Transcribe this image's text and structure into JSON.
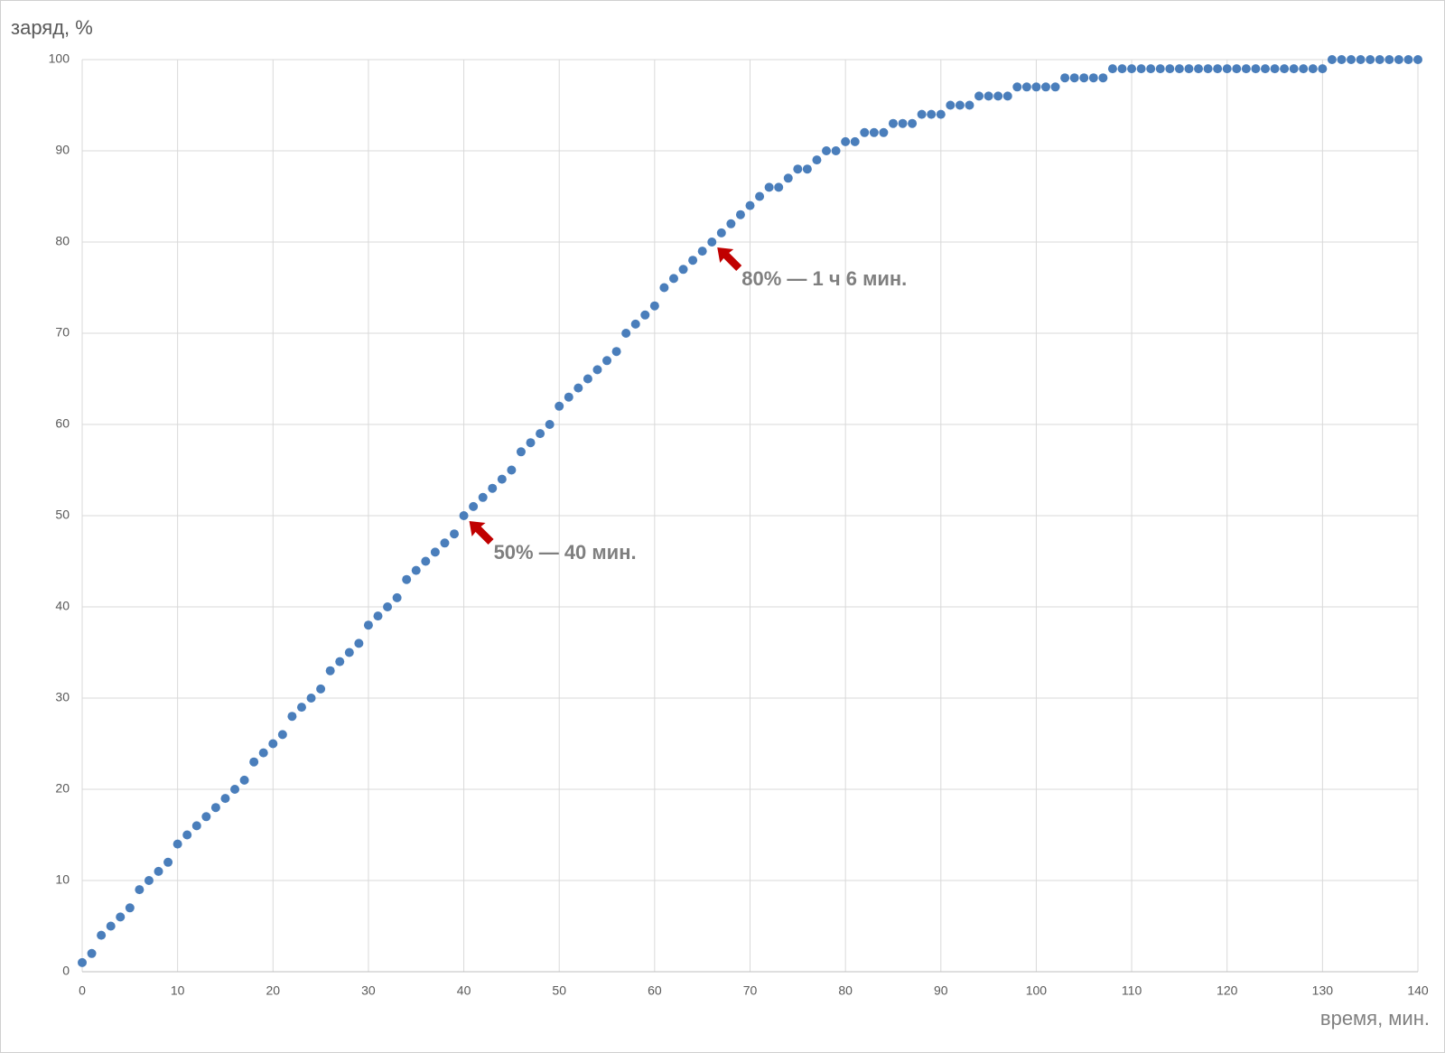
{
  "chart_data": {
    "type": "scatter",
    "y_label": "заряд, %",
    "x_label": "время, мин.",
    "x": [
      0,
      1,
      2,
      3,
      4,
      5,
      6,
      7,
      8,
      9,
      10,
      11,
      12,
      13,
      14,
      15,
      16,
      17,
      18,
      19,
      20,
      21,
      22,
      23,
      24,
      25,
      26,
      27,
      28,
      29,
      30,
      31,
      32,
      33,
      34,
      35,
      36,
      37,
      38,
      39,
      40,
      41,
      42,
      43,
      44,
      45,
      46,
      47,
      48,
      49,
      50,
      51,
      52,
      53,
      54,
      55,
      56,
      57,
      58,
      59,
      60,
      61,
      62,
      63,
      64,
      65,
      66,
      67,
      68,
      69,
      70,
      71,
      72,
      73,
      74,
      75,
      76,
      77,
      78,
      79,
      80,
      81,
      82,
      83,
      84,
      85,
      86,
      87,
      88,
      89,
      90,
      91,
      92,
      93,
      94,
      95,
      96,
      97,
      98,
      99,
      100,
      101,
      102,
      103,
      104,
      105,
      106,
      107,
      108,
      109,
      110,
      111,
      112,
      113,
      114,
      115,
      116,
      117,
      118,
      119,
      120,
      121,
      122,
      123,
      124,
      125,
      126,
      127,
      128,
      129,
      130,
      131,
      132,
      133,
      134,
      135,
      136,
      137,
      138,
      139,
      140
    ],
    "values": [
      1,
      2,
      4,
      5,
      6,
      7,
      9,
      10,
      11,
      12,
      14,
      15,
      16,
      17,
      18,
      19,
      20,
      21,
      23,
      24,
      25,
      26,
      28,
      29,
      30,
      31,
      33,
      34,
      35,
      36,
      38,
      39,
      40,
      41,
      43,
      44,
      45,
      46,
      47,
      48,
      50,
      51,
      52,
      53,
      54,
      55,
      57,
      58,
      59,
      60,
      62,
      63,
      64,
      65,
      66,
      67,
      68,
      70,
      71,
      72,
      73,
      75,
      76,
      77,
      78,
      79,
      80,
      81,
      82,
      83,
      84,
      85,
      86,
      86,
      87,
      88,
      88,
      89,
      90,
      90,
      91,
      91,
      92,
      92,
      92,
      93,
      93,
      93,
      94,
      94,
      94,
      95,
      95,
      95,
      96,
      96,
      96,
      96,
      97,
      97,
      97,
      97,
      97,
      98,
      98,
      98,
      98,
      98,
      99,
      99,
      99,
      99,
      99,
      99,
      99,
      99,
      99,
      99,
      99,
      99,
      99,
      99,
      99,
      99,
      99,
      99,
      99,
      99,
      99,
      99,
      99,
      100,
      100,
      100,
      100,
      100,
      100,
      100,
      100,
      100,
      100
    ],
    "color": "#4a7ebb",
    "xlim": [
      0,
      140
    ],
    "xticks": [
      0,
      10,
      20,
      30,
      40,
      50,
      60,
      70,
      80,
      90,
      100,
      110,
      120,
      130,
      140
    ],
    "ylim": [
      0,
      100
    ],
    "yticks": [
      0,
      10,
      20,
      30,
      40,
      50,
      60,
      70,
      80,
      90,
      100
    ],
    "grid": true,
    "annotations": [
      {
        "text": "80% — 1 ч 6 мин.",
        "x": 66,
        "y": 80
      },
      {
        "text": "50% — 40 мин.",
        "x": 40,
        "y": 50
      }
    ]
  }
}
